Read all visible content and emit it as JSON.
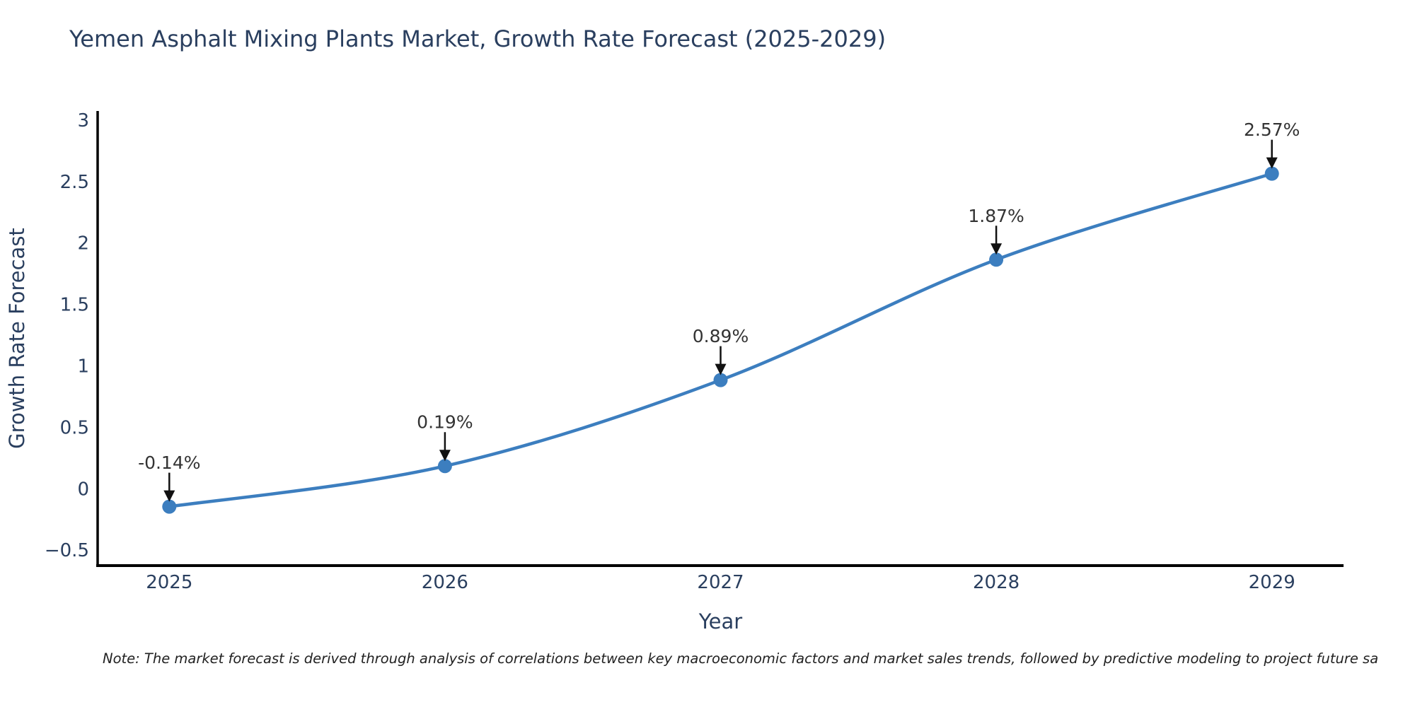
{
  "title": "Yemen Asphalt Mixing Plants Market, Growth Rate Forecast (2025-2029)",
  "note": "Note: The market forecast is derived through analysis of correlations between key macroeconomic factors and market sales trends, followed by predictive modeling to project future sa",
  "colors": {
    "line": "#3c7ebf",
    "marker": "#3c7ebf",
    "axis_line": "#000000",
    "axis_text": "#2a3f5f",
    "annotation_text": "#333333",
    "arrow": "#111111",
    "title_text": "#2a3f5f",
    "background": "#ffffff"
  },
  "chart_data": {
    "type": "line",
    "title": "Yemen Asphalt Mixing Plants Market, Growth Rate Forecast (2025-2029)",
    "xlabel": "Year",
    "ylabel": "Growth Rate Forecast",
    "line_shape": "spline",
    "grid": false,
    "legend_position": "none",
    "x": [
      2025,
      2026,
      2027,
      2028,
      2029
    ],
    "series": [
      {
        "name": "Growth Rate Forecast",
        "values": [
          -0.14,
          0.19,
          0.89,
          1.87,
          2.57
        ]
      }
    ],
    "point_labels": [
      "-0.14%",
      "0.19%",
      "0.89%",
      "1.87%",
      "2.57%"
    ],
    "xtick_labels": [
      "2025",
      "2026",
      "2027",
      "2028",
      "2029"
    ],
    "ytick_values": [
      3,
      2.5,
      2,
      1.5,
      1,
      0.5,
      0,
      -0.5
    ],
    "ytick_labels": [
      "3",
      "2.5",
      "2",
      "1.5",
      "1",
      "0.5",
      "0",
      "−0.5"
    ],
    "ylim": [
      -0.62,
      3.08
    ],
    "xlim": [
      2024.74,
      2029.26
    ]
  }
}
